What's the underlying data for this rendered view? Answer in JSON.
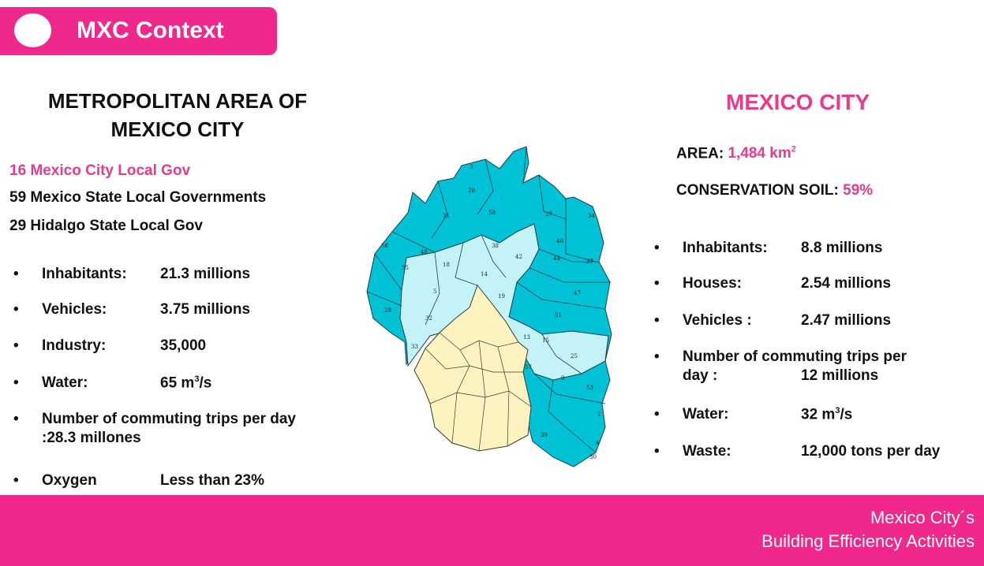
{
  "header": {
    "title": "MXC Context"
  },
  "left": {
    "title_line1": "METROPOLITAN AREA OF",
    "title_line2": "MEXICO CITY",
    "gov1": "16 Mexico City Local Gov",
    "gov2": "59 Mexico State Local Governments",
    "gov3": "29 Hidalgo State Local Gov",
    "stats": [
      {
        "label": "Inhabitants:",
        "value": "21.3 millions"
      },
      {
        "label": "Vehicles:",
        "value": "3.75 millions"
      },
      {
        "label": "Industry:",
        "value": "35,000"
      },
      {
        "label": "Water:",
        "value": "65 m",
        "sup": "3",
        "suffix": "/s"
      },
      {
        "label": "Number of commuting trips per day :28.3 millones"
      },
      {
        "label": "Oxygen",
        "value": "Less than 23%"
      }
    ]
  },
  "right": {
    "title": "MEXICO CITY",
    "area_label": "AREA:",
    "area_value": "1,484 km",
    "area_sup": "2",
    "soil_label": "CONSERVATION SOIL:",
    "soil_value": "59%",
    "stats": [
      {
        "label": "Inhabitants:",
        "value": "8.8 millions"
      },
      {
        "label": "Houses:",
        "value": "2.54 millions"
      },
      {
        "label": "Vehicles :",
        "value": "2.47 millions"
      },
      {
        "label_line1": "Number of commuting trips per",
        "label_line2": "day :",
        "value": "12 millions"
      },
      {
        "label": "Water:",
        "value": "32 m",
        "sup": "3",
        "suffix": "/s"
      },
      {
        "label": "Waste:",
        "value": "12,000 tons per day"
      }
    ]
  },
  "map": {
    "colors": {
      "outer": "#00c2d6",
      "middle": "#c4f3f7",
      "core": "#fcf3c0"
    },
    "labels": [
      "3",
      "20",
      "31",
      "59",
      "27",
      "34",
      "58",
      "48",
      "18",
      "35",
      "38",
      "42",
      "40",
      "44",
      "37",
      "5",
      "14",
      "19",
      "47",
      "28",
      "32",
      "51",
      "33",
      "13",
      "15",
      "25",
      "57",
      "9",
      "53",
      "39",
      "2",
      "4",
      "30"
    ]
  },
  "footer": {
    "line1": "Mexico City´s",
    "line2": "Building Efficiency Activities"
  }
}
